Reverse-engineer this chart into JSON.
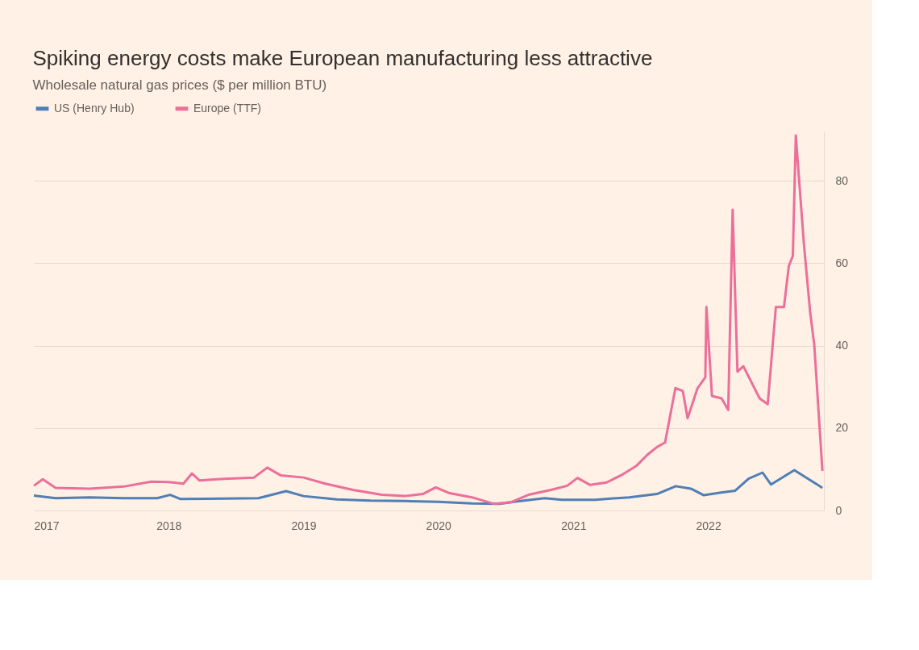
{
  "chart_data": {
    "type": "line",
    "title": "Spiking energy costs make European manufacturing less attractive",
    "subtitle": "Wholesale natural gas prices ($ per million BTU)",
    "xlim": [
      "2017-01-01",
      "2022-11-10"
    ],
    "xticks": [
      {
        "value": "2017-01-01",
        "label": "2017"
      },
      {
        "value": "2018-01-01",
        "label": "2018"
      },
      {
        "value": "2019-01-01",
        "label": "2019"
      },
      {
        "value": "2020-01-01",
        "label": "2020"
      },
      {
        "value": "2021-01-01",
        "label": "2021"
      },
      {
        "value": "2022-01-01",
        "label": "2022"
      }
    ],
    "ylim": [
      0,
      92
    ],
    "yticks": [
      0,
      20,
      40,
      60,
      80
    ],
    "grid": "y",
    "legend": "top left",
    "line_style": "solid",
    "marker": "none",
    "series": [
      {
        "name": "US (Henry Hub)",
        "color": "#4f7fb5",
        "x": [
          "2017-01-01",
          "2017-03-01",
          "2017-06-01",
          "2017-09-01",
          "2017-12-01",
          "2018-01-05",
          "2018-02-01",
          "2018-06-01",
          "2018-09-01",
          "2018-11-15",
          "2019-01-01",
          "2019-04-01",
          "2019-07-01",
          "2019-10-01",
          "2020-01-01",
          "2020-04-01",
          "2020-06-15",
          "2020-08-01",
          "2020-10-15",
          "2020-12-01",
          "2021-03-01",
          "2021-06-01",
          "2021-08-15",
          "2021-10-05",
          "2021-11-15",
          "2021-12-20",
          "2022-02-01",
          "2022-03-15",
          "2022-04-20",
          "2022-05-28",
          "2022-06-20",
          "2022-08-22",
          "2022-11-06"
        ],
        "values": [
          3.6,
          3.0,
          3.2,
          3.0,
          3.0,
          3.8,
          2.8,
          2.9,
          3.0,
          4.7,
          3.5,
          2.7,
          2.4,
          2.3,
          2.1,
          1.7,
          1.6,
          2.2,
          3.0,
          2.6,
          2.6,
          3.2,
          4.0,
          5.9,
          5.3,
          3.7,
          4.3,
          4.8,
          7.7,
          9.2,
          6.3,
          9.8,
          5.5
        ]
      },
      {
        "name": "Europe (TTF)",
        "color": "#ec6f9a",
        "x": [
          "2017-01-01",
          "2017-01-25",
          "2017-03-01",
          "2017-06-01",
          "2017-09-01",
          "2017-11-15",
          "2018-01-01",
          "2018-02-10",
          "2018-03-05",
          "2018-03-25",
          "2018-06-01",
          "2018-08-20",
          "2018-09-25",
          "2018-11-01",
          "2019-01-01",
          "2019-03-01",
          "2019-05-15",
          "2019-08-01",
          "2019-10-01",
          "2019-11-20",
          "2019-12-25",
          "2020-02-01",
          "2020-04-01",
          "2020-06-01",
          "2020-07-15",
          "2020-09-01",
          "2020-11-01",
          "2020-12-15",
          "2021-01-12",
          "2021-02-15",
          "2021-04-01",
          "2021-05-15",
          "2021-06-20",
          "2021-07-20",
          "2021-08-15",
          "2021-09-06",
          "2021-10-04",
          "2021-10-24",
          "2021-11-06",
          "2021-12-03",
          "2021-12-24",
          "2021-12-27",
          "2022-01-11",
          "2022-02-06",
          "2022-02-24",
          "2022-03-08",
          "2022-03-21",
          "2022-04-06",
          "2022-05-20",
          "2022-06-11",
          "2022-07-03",
          "2022-07-25",
          "2022-08-07",
          "2022-08-18",
          "2022-08-26",
          "2022-09-17",
          "2022-10-04",
          "2022-10-15",
          "2022-11-06"
        ],
        "values": [
          6.0,
          7.6,
          5.5,
          5.3,
          5.8,
          7.0,
          6.9,
          6.5,
          9.0,
          7.3,
          7.7,
          8.0,
          10.4,
          8.5,
          8.0,
          6.5,
          5.0,
          3.8,
          3.5,
          4.0,
          5.6,
          4.2,
          3.2,
          1.6,
          2.0,
          3.8,
          5.0,
          6.0,
          7.9,
          6.2,
          6.8,
          8.8,
          10.8,
          13.5,
          15.4,
          16.5,
          29.7,
          29.0,
          22.4,
          29.7,
          32.3,
          49.4,
          27.8,
          27.2,
          24.4,
          73,
          33.7,
          35,
          27.2,
          25.8,
          49.4,
          49.4,
          59.3,
          61.8,
          91,
          64.6,
          48,
          40.2,
          9.6
        ]
      }
    ]
  }
}
